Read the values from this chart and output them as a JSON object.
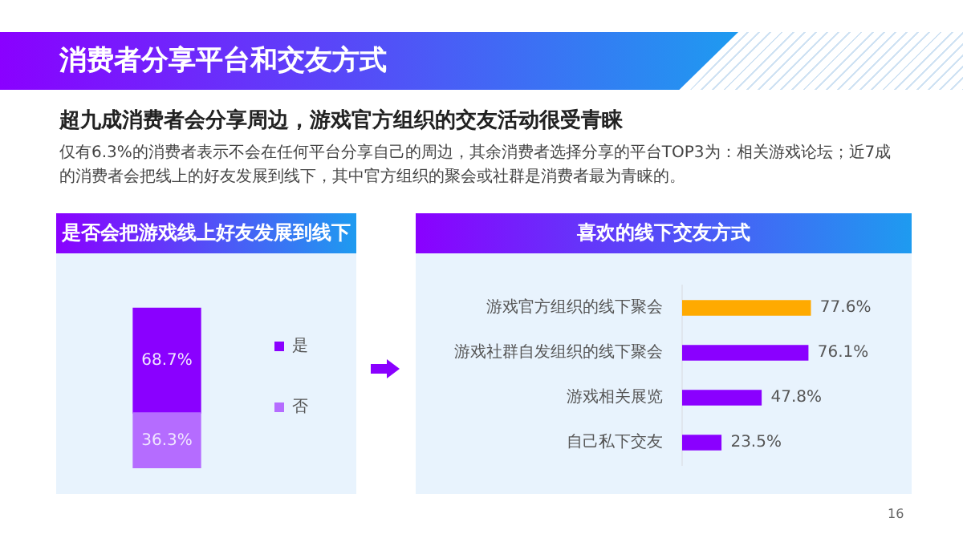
{
  "chart_data": [
    {
      "type": "bar",
      "title": "是否会把游戏线上好友发展到线下",
      "categories": [
        null
      ],
      "stacked": true,
      "legend": "right",
      "tick_labels": false,
      "series": [
        {
          "name": "否",
          "color": "#b56cff",
          "values": [
            36.3
          ],
          "value_labels": [
            "36.3%"
          ]
        },
        {
          "name": "是",
          "color": "#8a00ff",
          "values": [
            68.7
          ],
          "value_labels": [
            "68.7%"
          ]
        }
      ],
      "annotations": [
        "消费者分享平台和交友方式",
        "超九成消费者会分享周边，游戏官方组织的交友活动很受青睐",
        "仅有6.3%的消费者表示不会在任何平台分享自己的周边，其余消费者选择分享的平台TOP3为：相关游戏论坛；近7成的消费者会把线上的好友发展到线下，其中官方组织的聚会或社群是消费者最为青睐的。",
        "16"
      ]
    },
    {
      "type": "bar",
      "title": "喜欢的线下交友方式",
      "orientation": "horizontal",
      "tick_labels": "y",
      "categories": [
        "游戏官方组织的线下聚会",
        "游戏社群自发组织的线下聚会",
        "游戏相关展览",
        "自己私下交友"
      ],
      "values": [
        77.6,
        76.1,
        47.8,
        23.5
      ],
      "value_labels": [
        "77.6%",
        "76.1%",
        "47.8%",
        "23.5%"
      ],
      "colors": [
        "#ffaa00",
        "#8a00ff",
        "#8a00ff",
        "#8a00ff"
      ]
    }
  ]
}
